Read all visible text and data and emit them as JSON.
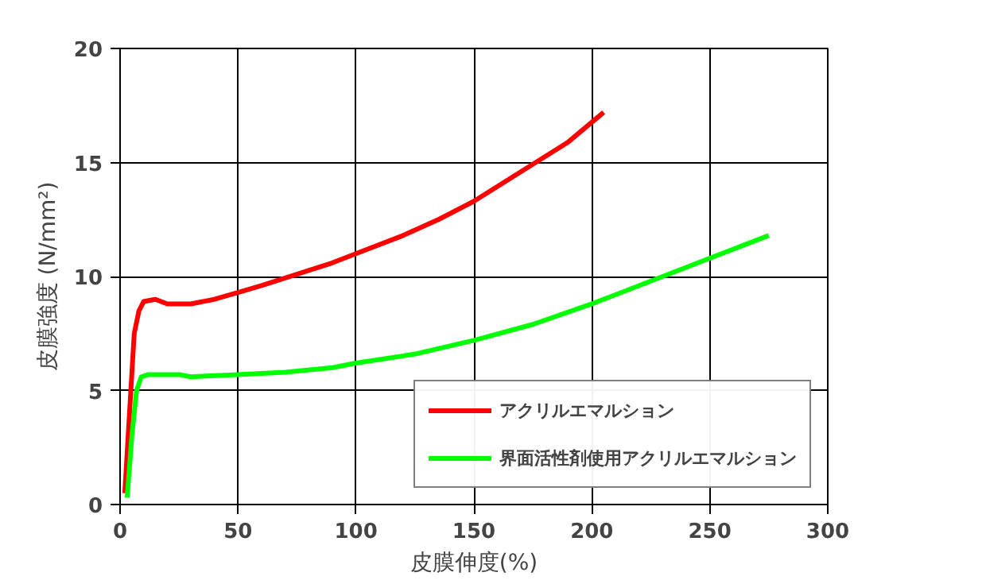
{
  "chart_data": {
    "type": "line",
    "xlabel": "皮膜伸度(%)",
    "ylabel": "皮膜強度 (N/mm²)",
    "xlim": [
      0,
      300
    ],
    "ylim": [
      0,
      20
    ],
    "xticks": [
      0,
      50,
      100,
      150,
      200,
      250,
      300
    ],
    "yticks": [
      0,
      5,
      10,
      15,
      20
    ],
    "grid": true,
    "legend": "bottom right",
    "marker": "none",
    "line_style": "solid",
    "series": [
      {
        "name": "アクリルエマルション",
        "color": "#ff0000",
        "x": [
          2,
          4,
          6,
          8,
          10,
          15,
          20,
          30,
          40,
          50,
          60,
          75,
          90,
          100,
          120,
          135,
          150,
          170,
          190,
          205
        ],
        "values": [
          0.5,
          4,
          7.5,
          8.5,
          8.9,
          9.0,
          8.8,
          8.8,
          9.0,
          9.3,
          9.6,
          10.1,
          10.6,
          11.0,
          11.8,
          12.5,
          13.3,
          14.6,
          15.9,
          17.2
        ]
      },
      {
        "name": "界面活性剤使用アクリルエマルション",
        "color": "#00ff00",
        "x": [
          3,
          5,
          7,
          9,
          12,
          25,
          30,
          50,
          70,
          90,
          100,
          125,
          150,
          175,
          200,
          225,
          250,
          275
        ],
        "values": [
          0.3,
          3,
          5,
          5.6,
          5.7,
          5.7,
          5.6,
          5.7,
          5.8,
          6.0,
          6.2,
          6.6,
          7.2,
          7.9,
          8.8,
          9.8,
          10.8,
          11.8
        ]
      }
    ]
  }
}
